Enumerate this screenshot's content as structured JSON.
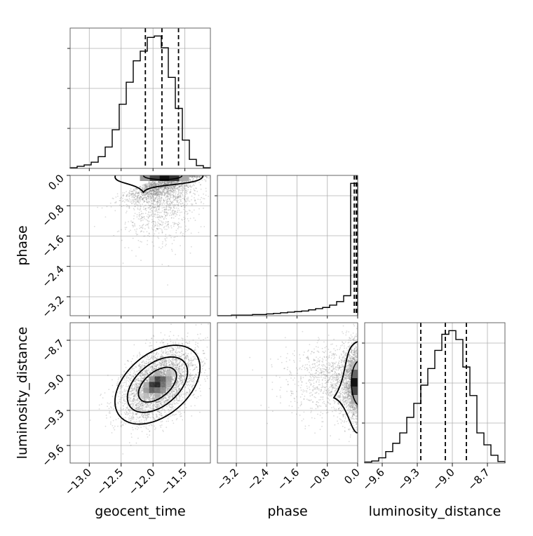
{
  "chart_data": {
    "type": "corner",
    "parameters": [
      "geocent_time",
      "phase",
      "luminosity_distance"
    ],
    "axis_labels": {
      "geocent_time": "geocent_time",
      "phase": "phase",
      "luminosity_distance": "luminosity_distance"
    },
    "ranges": {
      "geocent_time": [
        -13.3,
        -11.1
      ],
      "phase": [
        -3.7,
        0.0
      ],
      "luminosity_distance": [
        -9.75,
        -8.55
      ]
    },
    "ticks": {
      "geocent_time": [
        -13.0,
        -12.5,
        -12.0,
        -11.5
      ],
      "phase": [
        -3.2,
        -2.4,
        -1.6,
        -0.8,
        0.0
      ],
      "luminosity_distance": [
        -9.6,
        -9.3,
        -9.0,
        -8.7
      ]
    },
    "tick_labels": {
      "geocent_time": [
        "−13.0",
        "−12.5",
        "−12.0",
        "−11.5"
      ],
      "phase": [
        "−3.2",
        "−2.4",
        "−1.6",
        "−0.8",
        "0.0"
      ],
      "luminosity_distance": [
        "−9.6",
        "−9.3",
        "−9.0",
        "−8.7"
      ]
    },
    "quantiles": {
      "geocent_time": [
        -12.12,
        -11.86,
        -11.6
      ],
      "phase": [
        -0.09,
        -0.04,
        -0.01
      ],
      "luminosity_distance": [
        -9.27,
        -9.06,
        -8.88
      ]
    },
    "histograms": {
      "geocent_time": {
        "edges": [
          -13.3,
          -13.19,
          -13.08,
          -12.97,
          -12.86,
          -12.75,
          -12.64,
          -12.53,
          -12.42,
          -12.31,
          -12.2,
          -12.09,
          -11.98,
          -11.87,
          -11.76,
          -11.65,
          -11.54,
          -11.43,
          -11.32,
          -11.21,
          -11.1
        ],
        "counts": [
          1,
          3,
          5,
          9,
          17,
          31,
          56,
          93,
          125,
          156,
          170,
          190,
          192,
          175,
          132,
          87,
          41,
          13,
          4,
          1
        ]
      },
      "phase": {
        "edges": [
          -3.7,
          -3.515,
          -3.33,
          -3.145,
          -2.96,
          -2.775,
          -2.59,
          -2.405,
          -2.22,
          -2.035,
          -1.85,
          -1.665,
          -1.48,
          -1.295,
          -1.11,
          -0.925,
          -0.74,
          -0.555,
          -0.37,
          -0.185,
          0.0
        ],
        "counts": [
          0,
          0,
          1,
          1,
          1,
          2,
          2,
          3,
          4,
          5,
          6,
          7,
          8,
          10,
          12,
          14,
          18,
          24,
          34,
          225
        ]
      },
      "luminosity_distance": {
        "edges": [
          -9.75,
          -9.69,
          -9.63,
          -9.57,
          -9.51,
          -9.45,
          -9.39,
          -9.33,
          -9.27,
          -9.21,
          -9.15,
          -9.09,
          -9.03,
          -8.97,
          -8.91,
          -8.85,
          -8.79,
          -8.73,
          -8.67,
          -8.61,
          -8.55
        ],
        "counts": [
          2,
          4,
          10,
          22,
          38,
          58,
          88,
          115,
          150,
          182,
          217,
          248,
          255,
          238,
          185,
          130,
          58,
          35,
          15,
          3
        ]
      }
    },
    "pairs": [
      {
        "x": "geocent_time",
        "y": "phase",
        "center": [
          -11.82,
          -0.05
        ],
        "spread": [
          0.28,
          0.5
        ],
        "correlation": 0.55,
        "samples": 2600
      },
      {
        "x": "geocent_time",
        "y": "luminosity_distance",
        "center": [
          -11.93,
          -9.08
        ],
        "spread": [
          0.3,
          0.16
        ],
        "correlation": 0.45,
        "samples": 3500
      },
      {
        "x": "phase",
        "y": "luminosity_distance",
        "center": [
          -0.05,
          -9.06
        ],
        "spread": [
          0.5,
          0.16
        ],
        "correlation": 0.35,
        "samples": 2600
      }
    ],
    "grid": true,
    "colors": {
      "line": "#000000",
      "points": "#7f7f7f",
      "grid": "#b0b0b0",
      "density": "#000000"
    }
  }
}
